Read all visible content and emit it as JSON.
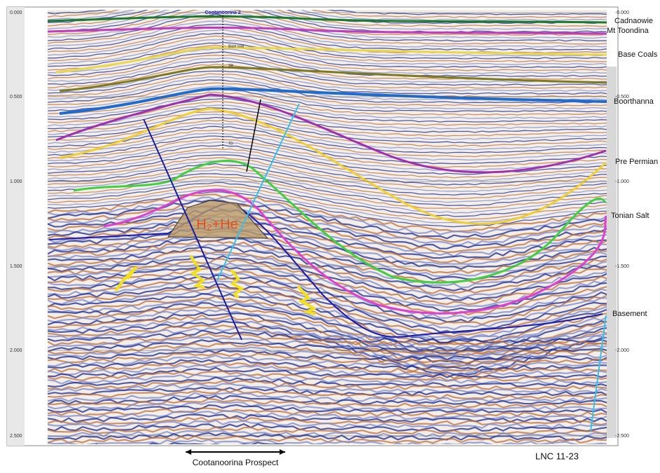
{
  "axis_left": [
    "0.000",
    "0.500",
    "1.000",
    "1.500",
    "2.000",
    "2.500"
  ],
  "axis_right": [
    "-0.000",
    "-0.500",
    "-1.000",
    "-1.500",
    "-2.000",
    "-2.500"
  ],
  "well": {
    "name": "Cootanoorina 2",
    "markers": [
      "Base coal",
      "SR",
      "TD"
    ]
  },
  "horizons": [
    "Cadnaowie",
    "Mt Toondina",
    "Base Coals",
    "Boorthanna",
    "Pre Permian",
    "Tonian Salt",
    "Basement"
  ],
  "prospect_label": "H₂+He",
  "footer": {
    "prospect": "Cootanoorina Prospect",
    "line": "LNC 11-23"
  }
}
